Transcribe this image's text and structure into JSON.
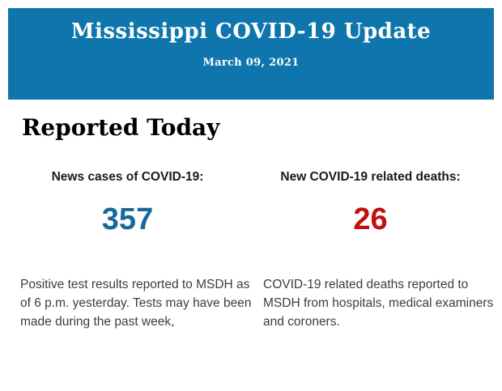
{
  "header": {
    "title": "Mississippi COVID-19 Update",
    "date": "March 09, 2021",
    "background_color": "#0f76ad",
    "text_color": "#ffffff"
  },
  "section": {
    "heading": "Reported Today"
  },
  "stats": [
    {
      "label": "News cases of COVID-19:",
      "value": "357",
      "value_color": "#17699b",
      "description_lines": [
        "Positive test results reported to MSDH as",
        "of 6 p.m. yesterday. Tests may have been",
        "made during the past week,"
      ]
    },
    {
      "label": "New COVID-19 related deaths:",
      "value": "26",
      "value_color": "#c30f0f",
      "description_lines": [
        "COVID-19 related deaths reported to",
        "MSDH from hospitals, medical examiners",
        "and coroners."
      ]
    }
  ]
}
